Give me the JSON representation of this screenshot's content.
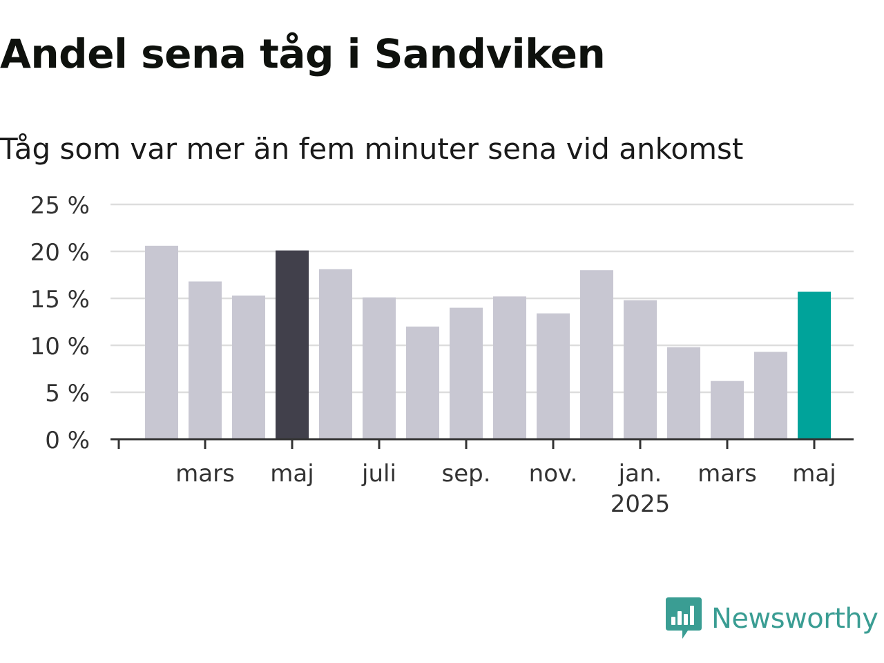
{
  "header": {
    "title": "Andel sena tåg i Sandviken",
    "subtitle": "Tåg som var mer än fem minuter sena vid ankomst"
  },
  "brand": {
    "name": "Newsworthy",
    "icon": "newsworthy-logo-icon",
    "color": "#3a9d93"
  },
  "colors": {
    "default_bar": "#c8c7d2",
    "highlight_bar": "#41404b",
    "latest_bar": "#00a39a",
    "gridline": "#dddddd",
    "axis": "#333333"
  },
  "chart_data": {
    "type": "bar",
    "title": "Andel sena tåg i Sandviken",
    "subtitle": "Tåg som var mer än fem minuter sena vid ankomst",
    "xlabel": "",
    "ylabel": "",
    "ylim": [
      0,
      25
    ],
    "yticks": [
      0,
      5,
      10,
      15,
      20,
      25
    ],
    "ytick_labels": [
      "0 %",
      "5 %",
      "10 %",
      "15 %",
      "20 %",
      "25 %"
    ],
    "grid": true,
    "legend": "none",
    "categories": [
      "2024-02",
      "2024-03",
      "2024-04",
      "2024-05",
      "2024-06",
      "2024-07",
      "2024-08",
      "2024-09",
      "2024-10",
      "2024-11",
      "2024-12",
      "2025-01",
      "2025-02",
      "2025-03",
      "2025-04",
      "2025-05"
    ],
    "values": [
      20.6,
      16.8,
      15.3,
      20.1,
      18.1,
      15.1,
      12.0,
      14.0,
      15.2,
      13.4,
      18.0,
      14.8,
      9.8,
      6.2,
      9.3,
      15.7
    ],
    "highlight": [
      {
        "category": "2024-05",
        "color": "#41404b"
      },
      {
        "category": "2025-05",
        "color": "#00a39a"
      }
    ],
    "xtick_labels": [
      {
        "category": "2024-03",
        "label": "mars"
      },
      {
        "category": "2024-05",
        "label": "maj"
      },
      {
        "category": "2024-07",
        "label": "juli"
      },
      {
        "category": "2024-09",
        "label": "sep."
      },
      {
        "category": "2024-11",
        "label": "nov."
      },
      {
        "category": "2025-01",
        "label": "jan.",
        "sublabel": "2025"
      },
      {
        "category": "2025-03",
        "label": "mars"
      },
      {
        "category": "2025-05",
        "label": "maj"
      }
    ]
  }
}
